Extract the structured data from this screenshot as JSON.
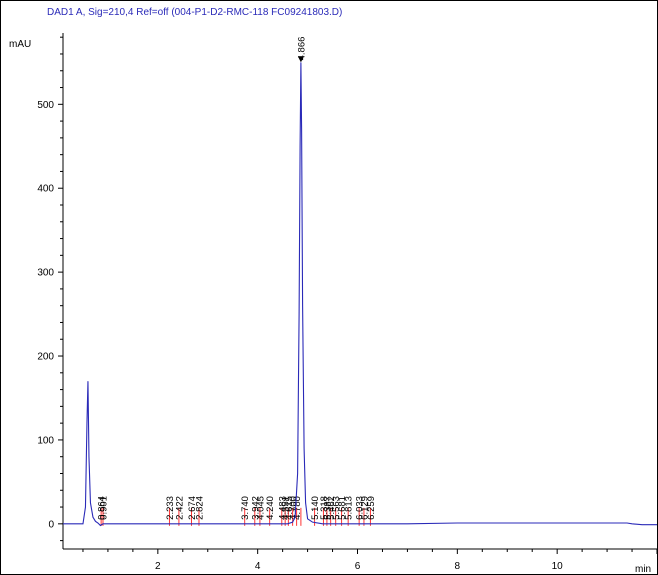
{
  "window": {
    "title": "DAD1 A, Sig=210,4 Ref=off (004-P1-D2-RMC-118 FC09241803.D)"
  },
  "chart_data": {
    "type": "line",
    "title": "DAD1 A, Sig=210,4 Ref=off (004-P1-D2-RMC-118 FC09241803.D)",
    "ylabel": "mAU",
    "xlabel": "min",
    "xlim": [
      0.1,
      12.0
    ],
    "ylim": [
      -30,
      585
    ],
    "x_ticks": [
      2,
      4,
      6,
      8,
      10
    ],
    "x_tick_labels": [
      "2",
      "4",
      "6",
      "8",
      "10"
    ],
    "y_ticks": [
      0,
      100,
      200,
      300,
      400,
      500
    ],
    "y_tick_labels": [
      "0",
      "100",
      "200",
      "300",
      "400",
      "500"
    ],
    "line_color": "#2a2ab8",
    "peak_marker_color": "#ff3333",
    "series": [
      {
        "x": [
          0.1,
          0.5,
          0.55,
          0.58,
          0.6,
          0.62,
          0.65,
          0.7,
          0.75,
          0.8,
          0.85,
          0.9,
          1.0,
          2.0,
          3.0,
          4.0,
          4.6,
          4.7,
          4.75,
          4.8,
          4.83,
          4.85,
          4.866,
          4.88,
          4.9,
          4.93,
          4.96,
          5.0,
          5.1,
          5.3,
          6.0,
          7.0,
          8.0,
          9.0,
          10.0,
          11.0,
          11.4,
          11.5,
          11.7,
          12.0
        ],
        "y": [
          0,
          0,
          20,
          120,
          170,
          80,
          25,
          8,
          3,
          1,
          -2,
          0,
          0,
          0,
          0,
          0,
          0,
          2,
          8,
          60,
          250,
          450,
          550,
          470,
          260,
          90,
          25,
          6,
          2,
          0,
          0,
          0,
          1,
          1,
          1,
          1,
          1,
          0,
          -1,
          -1
        ]
      }
    ],
    "peaks": [
      {
        "label": "0.864",
        "x": 0.864
      },
      {
        "label": "0.901",
        "x": 0.901
      },
      {
        "label": "2.233",
        "x": 2.233
      },
      {
        "label": "2.422",
        "x": 2.422
      },
      {
        "label": "2.674",
        "x": 2.674
      },
      {
        "label": "2.824",
        "x": 2.824
      },
      {
        "label": "3.740",
        "x": 3.74
      },
      {
        "label": "3.942",
        "x": 3.942
      },
      {
        "label": "4.045",
        "x": 4.045
      },
      {
        "label": "4.240",
        "x": 4.24
      },
      {
        "label": "4.483",
        "x": 4.483
      },
      {
        "label": "4.551",
        "x": 4.551
      },
      {
        "label": "4.615",
        "x": 4.615
      },
      {
        "label": "4.700",
        "x": 4.7
      },
      {
        "label": "4.780",
        "x": 4.78
      },
      {
        "label": "4.866",
        "x": 4.866
      },
      {
        "label": "5.140",
        "x": 5.14
      },
      {
        "label": "5.318",
        "x": 5.318
      },
      {
        "label": "5.387",
        "x": 5.387
      },
      {
        "label": "5.462",
        "x": 5.462
      },
      {
        "label": "5.563",
        "x": 5.563
      },
      {
        "label": "5.681",
        "x": 5.681
      },
      {
        "label": "5.813",
        "x": 5.813
      },
      {
        "label": "6.033",
        "x": 6.033
      },
      {
        "label": "6.129",
        "x": 6.129
      },
      {
        "label": "6.259",
        "x": 6.259
      }
    ]
  }
}
